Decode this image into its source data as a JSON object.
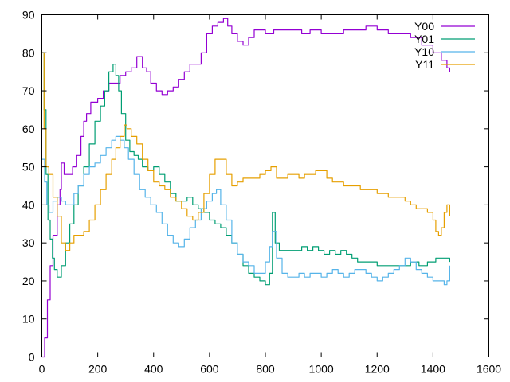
{
  "chart_data": {
    "type": "line",
    "title": "",
    "xlabel": "",
    "ylabel": "",
    "xlim": [
      0,
      1600
    ],
    "ylim": [
      0,
      90
    ],
    "x_ticks": [
      0,
      200,
      400,
      600,
      800,
      1000,
      1200,
      1400,
      1600
    ],
    "y_ticks": [
      0,
      10,
      20,
      30,
      40,
      50,
      60,
      70,
      80,
      90
    ],
    "grid": false,
    "legend_position": "top-right",
    "series": [
      {
        "name": "Y00",
        "color": "#9400d3",
        "points": [
          [
            0,
            0
          ],
          [
            10,
            5
          ],
          [
            20,
            15
          ],
          [
            30,
            24
          ],
          [
            40,
            32
          ],
          [
            55,
            40
          ],
          [
            65,
            44
          ],
          [
            70,
            51
          ],
          [
            80,
            48
          ],
          [
            95,
            48
          ],
          [
            110,
            50
          ],
          [
            125,
            53
          ],
          [
            140,
            58
          ],
          [
            150,
            62
          ],
          [
            160,
            64
          ],
          [
            175,
            67
          ],
          [
            200,
            68
          ],
          [
            220,
            70
          ],
          [
            240,
            72
          ],
          [
            260,
            72
          ],
          [
            280,
            74
          ],
          [
            300,
            75
          ],
          [
            320,
            76
          ],
          [
            340,
            79
          ],
          [
            360,
            76
          ],
          [
            375,
            75
          ],
          [
            390,
            72
          ],
          [
            410,
            70
          ],
          [
            430,
            69
          ],
          [
            450,
            70
          ],
          [
            470,
            71
          ],
          [
            490,
            73
          ],
          [
            510,
            75
          ],
          [
            530,
            77
          ],
          [
            550,
            77
          ],
          [
            570,
            80
          ],
          [
            590,
            85
          ],
          [
            610,
            87
          ],
          [
            630,
            88
          ],
          [
            650,
            89
          ],
          [
            665,
            87
          ],
          [
            680,
            85
          ],
          [
            700,
            83
          ],
          [
            720,
            82
          ],
          [
            740,
            84
          ],
          [
            760,
            86
          ],
          [
            780,
            86
          ],
          [
            800,
            85
          ],
          [
            830,
            86
          ],
          [
            860,
            86
          ],
          [
            880,
            86
          ],
          [
            900,
            86
          ],
          [
            930,
            85
          ],
          [
            960,
            86
          ],
          [
            1000,
            85
          ],
          [
            1040,
            85
          ],
          [
            1080,
            86
          ],
          [
            1120,
            86
          ],
          [
            1160,
            87
          ],
          [
            1200,
            86
          ],
          [
            1240,
            85
          ],
          [
            1280,
            85
          ],
          [
            1320,
            84
          ],
          [
            1360,
            82
          ],
          [
            1400,
            80
          ],
          [
            1430,
            78
          ],
          [
            1450,
            76
          ],
          [
            1460,
            75
          ]
        ]
      },
      {
        "name": "Y01",
        "color": "#009e73",
        "points": [
          [
            0,
            80
          ],
          [
            8,
            65
          ],
          [
            15,
            48
          ],
          [
            22,
            36
          ],
          [
            30,
            31
          ],
          [
            38,
            26
          ],
          [
            45,
            23
          ],
          [
            55,
            21
          ],
          [
            70,
            24
          ],
          [
            85,
            30
          ],
          [
            100,
            35
          ],
          [
            115,
            40
          ],
          [
            130,
            45
          ],
          [
            150,
            50
          ],
          [
            170,
            56
          ],
          [
            190,
            62
          ],
          [
            210,
            66
          ],
          [
            225,
            70
          ],
          [
            240,
            75
          ],
          [
            255,
            77
          ],
          [
            265,
            74
          ],
          [
            275,
            70
          ],
          [
            285,
            64
          ],
          [
            300,
            57
          ],
          [
            315,
            54
          ],
          [
            330,
            53
          ],
          [
            345,
            52
          ],
          [
            360,
            50
          ],
          [
            380,
            49
          ],
          [
            400,
            50
          ],
          [
            420,
            48
          ],
          [
            440,
            46
          ],
          [
            460,
            43
          ],
          [
            480,
            41
          ],
          [
            500,
            41
          ],
          [
            520,
            42
          ],
          [
            540,
            40
          ],
          [
            560,
            39
          ],
          [
            580,
            38
          ],
          [
            600,
            36
          ],
          [
            620,
            35
          ],
          [
            640,
            34
          ],
          [
            660,
            32
          ],
          [
            680,
            30
          ],
          [
            700,
            27
          ],
          [
            720,
            24
          ],
          [
            740,
            22
          ],
          [
            760,
            21
          ],
          [
            780,
            20
          ],
          [
            800,
            19
          ],
          [
            815,
            22
          ],
          [
            825,
            38
          ],
          [
            835,
            30
          ],
          [
            850,
            28
          ],
          [
            870,
            28
          ],
          [
            890,
            28
          ],
          [
            910,
            28
          ],
          [
            930,
            29
          ],
          [
            950,
            28
          ],
          [
            970,
            29
          ],
          [
            990,
            28
          ],
          [
            1010,
            27
          ],
          [
            1030,
            28
          ],
          [
            1050,
            27
          ],
          [
            1070,
            28
          ],
          [
            1090,
            27
          ],
          [
            1110,
            26
          ],
          [
            1130,
            25
          ],
          [
            1150,
            25
          ],
          [
            1170,
            25
          ],
          [
            1200,
            24
          ],
          [
            1230,
            24
          ],
          [
            1260,
            24
          ],
          [
            1290,
            24
          ],
          [
            1320,
            25
          ],
          [
            1350,
            24
          ],
          [
            1380,
            25
          ],
          [
            1410,
            26
          ],
          [
            1440,
            26
          ],
          [
            1460,
            25
          ]
        ]
      },
      {
        "name": "Y10",
        "color": "#56b4e9",
        "points": [
          [
            0,
            52
          ],
          [
            10,
            46
          ],
          [
            18,
            40
          ],
          [
            26,
            38
          ],
          [
            40,
            41
          ],
          [
            55,
            42
          ],
          [
            70,
            41
          ],
          [
            85,
            40
          ],
          [
            100,
            40
          ],
          [
            115,
            43
          ],
          [
            130,
            45
          ],
          [
            150,
            48
          ],
          [
            170,
            50
          ],
          [
            190,
            51
          ],
          [
            210,
            53
          ],
          [
            230,
            55
          ],
          [
            250,
            57
          ],
          [
            265,
            58
          ],
          [
            280,
            57
          ],
          [
            295,
            55
          ],
          [
            310,
            52
          ],
          [
            330,
            48
          ],
          [
            350,
            44
          ],
          [
            370,
            42
          ],
          [
            390,
            40
          ],
          [
            410,
            38
          ],
          [
            430,
            35
          ],
          [
            450,
            32
          ],
          [
            470,
            30
          ],
          [
            490,
            29
          ],
          [
            510,
            31
          ],
          [
            530,
            34
          ],
          [
            550,
            36
          ],
          [
            570,
            39
          ],
          [
            590,
            41
          ],
          [
            610,
            43
          ],
          [
            625,
            44
          ],
          [
            640,
            40
          ],
          [
            660,
            36
          ],
          [
            680,
            30
          ],
          [
            700,
            27
          ],
          [
            720,
            25
          ],
          [
            740,
            24
          ],
          [
            760,
            22
          ],
          [
            780,
            22
          ],
          [
            800,
            25
          ],
          [
            815,
            29
          ],
          [
            825,
            33
          ],
          [
            840,
            26
          ],
          [
            860,
            22
          ],
          [
            880,
            21
          ],
          [
            900,
            21
          ],
          [
            920,
            22
          ],
          [
            940,
            21
          ],
          [
            960,
            22
          ],
          [
            980,
            22
          ],
          [
            1000,
            21
          ],
          [
            1020,
            22
          ],
          [
            1040,
            23
          ],
          [
            1060,
            22
          ],
          [
            1080,
            21
          ],
          [
            1100,
            22
          ],
          [
            1120,
            23
          ],
          [
            1140,
            23
          ],
          [
            1160,
            22
          ],
          [
            1180,
            21
          ],
          [
            1200,
            20
          ],
          [
            1220,
            21
          ],
          [
            1240,
            22
          ],
          [
            1260,
            23
          ],
          [
            1280,
            24
          ],
          [
            1300,
            26
          ],
          [
            1320,
            25
          ],
          [
            1340,
            23
          ],
          [
            1360,
            22
          ],
          [
            1380,
            21
          ],
          [
            1400,
            20
          ],
          [
            1420,
            20
          ],
          [
            1440,
            19
          ],
          [
            1450,
            20
          ],
          [
            1460,
            24
          ]
        ]
      },
      {
        "name": "Y11",
        "color": "#e69f00",
        "points": [
          [
            0,
            80
          ],
          [
            8,
            60
          ],
          [
            15,
            50
          ],
          [
            25,
            48
          ],
          [
            40,
            42
          ],
          [
            55,
            37
          ],
          [
            70,
            30
          ],
          [
            85,
            28
          ],
          [
            100,
            30
          ],
          [
            115,
            32
          ],
          [
            130,
            32
          ],
          [
            150,
            33
          ],
          [
            170,
            36
          ],
          [
            190,
            40
          ],
          [
            210,
            44
          ],
          [
            230,
            48
          ],
          [
            250,
            52
          ],
          [
            265,
            55
          ],
          [
            280,
            58
          ],
          [
            295,
            61
          ],
          [
            305,
            60
          ],
          [
            320,
            58
          ],
          [
            340,
            56
          ],
          [
            360,
            52
          ],
          [
            380,
            49
          ],
          [
            400,
            46
          ],
          [
            420,
            45
          ],
          [
            440,
            44
          ],
          [
            460,
            42
          ],
          [
            480,
            41
          ],
          [
            500,
            39
          ],
          [
            520,
            37
          ],
          [
            540,
            36
          ],
          [
            560,
            38
          ],
          [
            580,
            43
          ],
          [
            600,
            48
          ],
          [
            620,
            52
          ],
          [
            640,
            52
          ],
          [
            660,
            48
          ],
          [
            680,
            45
          ],
          [
            700,
            46
          ],
          [
            720,
            47
          ],
          [
            740,
            47
          ],
          [
            760,
            47
          ],
          [
            780,
            48
          ],
          [
            800,
            49
          ],
          [
            820,
            50
          ],
          [
            840,
            47
          ],
          [
            860,
            47
          ],
          [
            880,
            48
          ],
          [
            900,
            48
          ],
          [
            920,
            47
          ],
          [
            940,
            48
          ],
          [
            960,
            48
          ],
          [
            980,
            49
          ],
          [
            1000,
            49
          ],
          [
            1020,
            47
          ],
          [
            1040,
            46
          ],
          [
            1060,
            46
          ],
          [
            1080,
            45
          ],
          [
            1100,
            45
          ],
          [
            1120,
            45
          ],
          [
            1140,
            44
          ],
          [
            1160,
            44
          ],
          [
            1180,
            44
          ],
          [
            1200,
            43
          ],
          [
            1220,
            43
          ],
          [
            1240,
            42
          ],
          [
            1260,
            42
          ],
          [
            1280,
            42
          ],
          [
            1300,
            41
          ],
          [
            1320,
            40
          ],
          [
            1340,
            39
          ],
          [
            1360,
            39
          ],
          [
            1380,
            38
          ],
          [
            1400,
            36
          ],
          [
            1410,
            33
          ],
          [
            1420,
            32
          ],
          [
            1430,
            34
          ],
          [
            1440,
            38
          ],
          [
            1450,
            40
          ],
          [
            1460,
            37
          ]
        ]
      }
    ]
  }
}
